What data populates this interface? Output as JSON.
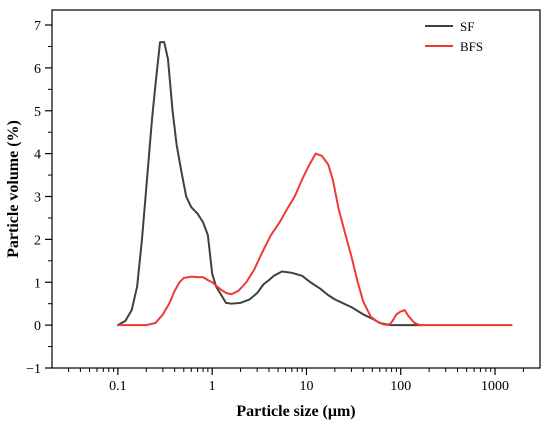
{
  "chart_data": {
    "type": "line",
    "xlabel": "Particle size (μm)",
    "ylabel": "Particle volume (%)",
    "x_scale": "log",
    "xlim": [
      0.02,
      3000
    ],
    "ylim": [
      -1,
      7.35
    ],
    "x_ticks": [
      0.1,
      1,
      10,
      100,
      1000
    ],
    "x_tick_labels": [
      "0.1",
      "1",
      "10",
      "100",
      "1000"
    ],
    "y_ticks": [
      -1,
      0,
      1,
      2,
      3,
      4,
      5,
      6,
      7
    ],
    "y_tick_labels": [
      "−1",
      "0",
      "1",
      "2",
      "3",
      "4",
      "5",
      "6",
      "7"
    ],
    "grid": false,
    "legend_position": "top-right",
    "series": [
      {
        "name": "SF",
        "color": "#404040",
        "points": [
          [
            0.1,
            0
          ],
          [
            0.12,
            0.1
          ],
          [
            0.14,
            0.35
          ],
          [
            0.16,
            0.9
          ],
          [
            0.18,
            2.0
          ],
          [
            0.2,
            3.2
          ],
          [
            0.23,
            4.8
          ],
          [
            0.25,
            5.6
          ],
          [
            0.28,
            6.6
          ],
          [
            0.31,
            6.6
          ],
          [
            0.34,
            6.2
          ],
          [
            0.38,
            5.0
          ],
          [
            0.42,
            4.2
          ],
          [
            0.47,
            3.6
          ],
          [
            0.53,
            3.0
          ],
          [
            0.6,
            2.75
          ],
          [
            0.7,
            2.6
          ],
          [
            0.8,
            2.4
          ],
          [
            0.9,
            2.1
          ],
          [
            1.0,
            1.2
          ],
          [
            1.1,
            0.9
          ],
          [
            1.25,
            0.7
          ],
          [
            1.4,
            0.52
          ],
          [
            1.6,
            0.5
          ],
          [
            2.0,
            0.52
          ],
          [
            2.5,
            0.6
          ],
          [
            3.0,
            0.75
          ],
          [
            3.5,
            0.95
          ],
          [
            4.0,
            1.05
          ],
          [
            4.5,
            1.15
          ],
          [
            5.5,
            1.25
          ],
          [
            7.0,
            1.22
          ],
          [
            9.0,
            1.15
          ],
          [
            11,
            1.0
          ],
          [
            14,
            0.85
          ],
          [
            17,
            0.7
          ],
          [
            20,
            0.6
          ],
          [
            25,
            0.5
          ],
          [
            30,
            0.42
          ],
          [
            40,
            0.25
          ],
          [
            50,
            0.15
          ],
          [
            60,
            0.05
          ],
          [
            70,
            0.02
          ],
          [
            80,
            0
          ],
          [
            100,
            0
          ],
          [
            120,
            0
          ],
          [
            150,
            0
          ],
          [
            170,
            0
          ]
        ]
      },
      {
        "name": "BFS",
        "color": "#ee3a3a",
        "points": [
          [
            0.1,
            0
          ],
          [
            0.15,
            0
          ],
          [
            0.2,
            0
          ],
          [
            0.25,
            0.05
          ],
          [
            0.3,
            0.25
          ],
          [
            0.35,
            0.5
          ],
          [
            0.4,
            0.8
          ],
          [
            0.45,
            1.0
          ],
          [
            0.5,
            1.1
          ],
          [
            0.6,
            1.13
          ],
          [
            0.7,
            1.12
          ],
          [
            0.8,
            1.12
          ],
          [
            0.9,
            1.05
          ],
          [
            1.0,
            1.0
          ],
          [
            1.2,
            0.85
          ],
          [
            1.4,
            0.75
          ],
          [
            1.6,
            0.72
          ],
          [
            1.9,
            0.8
          ],
          [
            2.3,
            1.0
          ],
          [
            2.8,
            1.3
          ],
          [
            3.4,
            1.7
          ],
          [
            4.2,
            2.1
          ],
          [
            5.2,
            2.4
          ],
          [
            6.2,
            2.7
          ],
          [
            7.5,
            3.0
          ],
          [
            9.0,
            3.4
          ],
          [
            10.5,
            3.7
          ],
          [
            12.5,
            4.0
          ],
          [
            14.5,
            3.95
          ],
          [
            17,
            3.75
          ],
          [
            19,
            3.4
          ],
          [
            22,
            2.7
          ],
          [
            26,
            2.1
          ],
          [
            30,
            1.6
          ],
          [
            35,
            1.0
          ],
          [
            40,
            0.55
          ],
          [
            48,
            0.2
          ],
          [
            55,
            0.1
          ],
          [
            65,
            0.02
          ],
          [
            75,
            0
          ],
          [
            82,
            0.1
          ],
          [
            90,
            0.25
          ],
          [
            100,
            0.32
          ],
          [
            110,
            0.35
          ],
          [
            120,
            0.22
          ],
          [
            140,
            0.05
          ],
          [
            160,
            0
          ],
          [
            200,
            0
          ],
          [
            500,
            0
          ],
          [
            1000,
            0
          ],
          [
            1500,
            0
          ]
        ]
      }
    ]
  }
}
